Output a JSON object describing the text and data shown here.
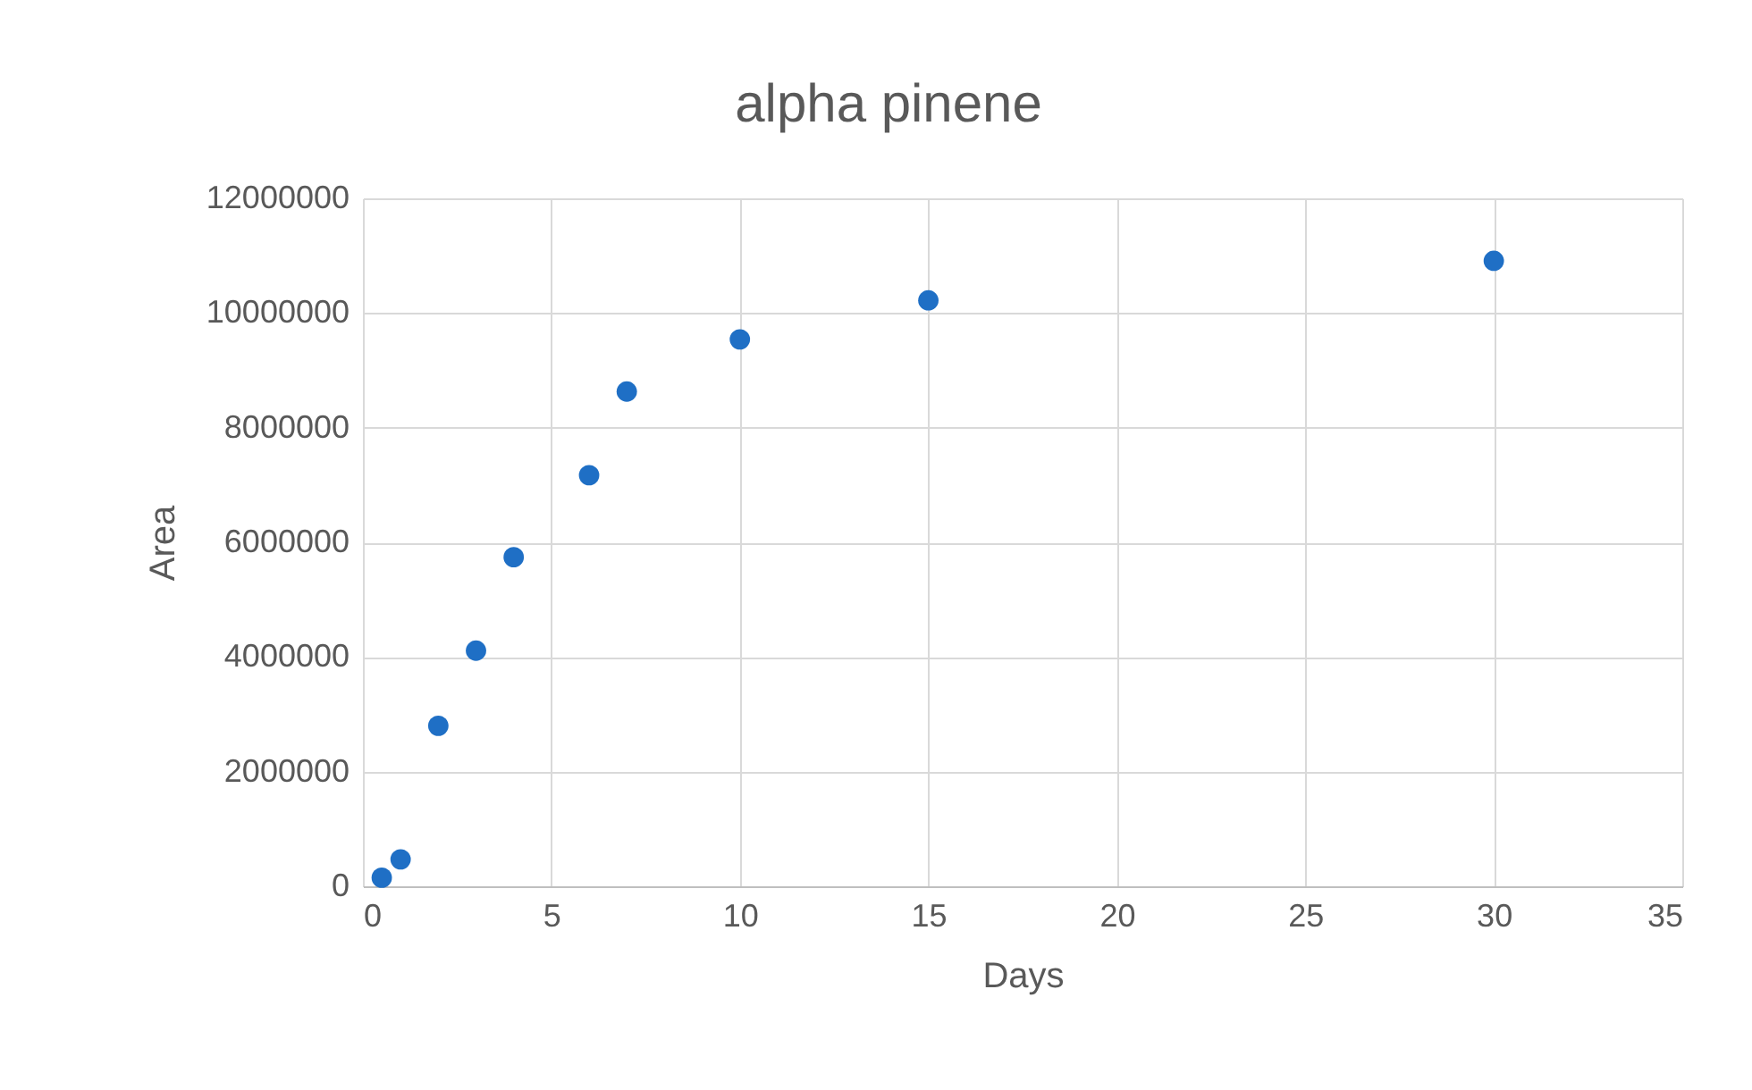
{
  "chart_data": {
    "type": "scatter",
    "title": "alpha pinene",
    "xlabel": "Days",
    "ylabel": "Area",
    "x": [
      0.5,
      1,
      2,
      3,
      4,
      6,
      7,
      10,
      15,
      30
    ],
    "series": [
      {
        "color": "#1f6fc5",
        "values": [
          150000,
          470000,
          2800000,
          4110000,
          5740000,
          7170000,
          8630000,
          9540000,
          10220000,
          10910000
        ]
      }
    ],
    "xlim": [
      0,
      35
    ],
    "xticks": [
      0,
      5,
      10,
      15,
      20,
      25,
      30,
      35
    ],
    "ylim": [
      0,
      12000000
    ],
    "yticks": [
      0,
      2000000,
      4000000,
      6000000,
      8000000,
      10000000,
      12000000
    ],
    "grid": true,
    "marker": "circle"
  }
}
